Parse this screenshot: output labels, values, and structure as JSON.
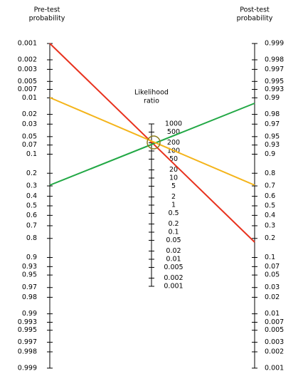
{
  "pre_axis": {
    "title": [
      "Pre-test",
      "probability"
    ],
    "labels": [
      "0.001",
      "0.002",
      "0.003",
      "0.005",
      "0.007",
      "0.01",
      "0.02",
      "0.03",
      "0.05",
      "0.07",
      "0.1",
      "0.2",
      "0.3",
      "0.4",
      "0.5",
      "0.6",
      "0.7",
      "0.8",
      "0.9",
      "0.93",
      "0.95",
      "0.97",
      "0.98",
      "0.99",
      "0.993",
      "0.995",
      "0.997",
      "0.998",
      "0.999"
    ]
  },
  "post_axis": {
    "title": [
      "Post-test",
      "probability"
    ],
    "labels": [
      "0.999",
      "0.998",
      "0.997",
      "0.995",
      "0.993",
      "0.99",
      "0.98",
      "0.97",
      "0.95",
      "0.93",
      "0.9",
      "0.8",
      "0.7",
      "0.6",
      "0.5",
      "0.4",
      "0.3",
      "0.2",
      "0.1",
      "0.07",
      "0.05",
      "0.03",
      "0.02",
      "0.01",
      "0.007",
      "0.005",
      "0.003",
      "0.002",
      "0.001"
    ]
  },
  "lr_axis": {
    "title": [
      "Likelihood",
      "ratio"
    ],
    "labels": [
      "1000",
      "500",
      "200",
      "100",
      "50",
      "20",
      "10",
      "5",
      "2",
      "1",
      "0.5",
      "0.2",
      "0.1",
      "0.05",
      "0.02",
      "0.01",
      "0.005",
      "0.002",
      "0.001"
    ]
  }
}
